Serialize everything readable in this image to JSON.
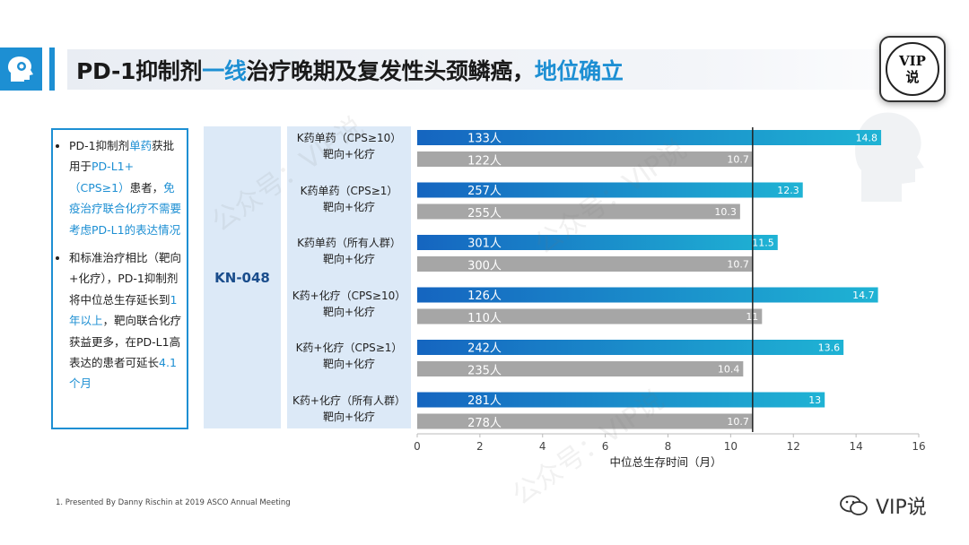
{
  "title": {
    "part1": "PD-1抑制剂",
    "part2": "一线",
    "part3": "治疗晚期及复发性头颈鳞癌，",
    "part4": "地位确立"
  },
  "badge": {
    "line1": "VIP",
    "line2": "说"
  },
  "notes": {
    "b1_a": "PD-1抑制剂",
    "b1_b": "单药",
    "b1_c": "获批用于",
    "b1_d": "PD-L1+（CPS≥1）",
    "b1_e": "患者，",
    "b1_f": "免疫治疗联合化疗不需要考虑PD-L1的表达情况",
    "b2_a": "和标准治疗相比（靶向+化疗），PD-1抑制剂将中位总生存延长到",
    "b2_b": "1年以上",
    "b2_c": "，靶向联合化疗获益更多，在PD-L1高表达的患者可延长",
    "b2_d": "4.1个月"
  },
  "trial": "KN-048",
  "footnote": "1.  Presented By Danny Rischin at 2019 ASCO Annual Meeting",
  "logo_text": "VIP说",
  "watermark": "公众号：VIP说",
  "colors": {
    "accent": "#1d8fd3",
    "bar_blue_start": "#1565c0",
    "bar_blue_end": "#1fb3d4",
    "bar_gray": "#a6a6a6",
    "ref_line": "#222222"
  },
  "chart_data": {
    "type": "bar",
    "orientation": "horizontal",
    "xlabel": "中位总生存时间（月）",
    "xlim": [
      0,
      16
    ],
    "xticks": [
      0,
      2,
      4,
      6,
      8,
      10,
      12,
      14,
      16
    ],
    "reference_line": 10.7,
    "groups": [
      {
        "label": "K药单药（CPS≥10）",
        "sub": "靶向+化疗",
        "k_value": 14.8,
        "k_n": "133人",
        "c_value": 10.7,
        "c_n": "122人"
      },
      {
        "label": "K药单药（CPS≥1）",
        "sub": "靶向+化疗",
        "k_value": 12.3,
        "k_n": "257人",
        "c_value": 10.3,
        "c_n": "255人"
      },
      {
        "label": "K药单药（所有人群）",
        "sub": "靶向+化疗",
        "k_value": 11.5,
        "k_n": "301人",
        "c_value": 10.7,
        "c_n": "300人"
      },
      {
        "label": "K药+化疗（CPS≥10）",
        "sub": "靶向+化疗",
        "k_value": 14.7,
        "k_n": "126人",
        "c_value": 11,
        "c_n": "110人"
      },
      {
        "label": "K药+化疗（CPS≥1）",
        "sub": "靶向+化疗",
        "k_value": 13.6,
        "k_n": "242人",
        "c_value": 10.4,
        "c_n": "235人"
      },
      {
        "label": "K药+化疗（所有人群）",
        "sub": "靶向+化疗",
        "k_value": 13,
        "k_n": "281人",
        "c_value": 10.7,
        "c_n": "278人"
      }
    ]
  }
}
